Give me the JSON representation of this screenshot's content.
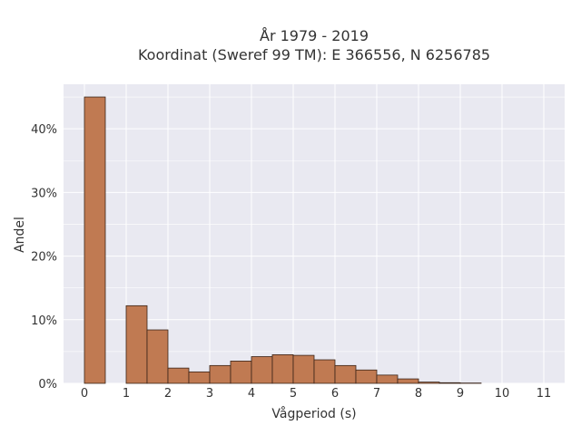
{
  "chart_data": {
    "type": "bar",
    "title_line1": "År 1979 - 2019",
    "title_line2": "Koordinat (Sweref 99 TM): E 366556, N 6256785",
    "xlabel": "Vågperiod (s)",
    "ylabel": "Andel",
    "xlim": [
      -0.5,
      11.5
    ],
    "ylim": [
      0,
      0.47
    ],
    "x_ticks": [
      0,
      1,
      2,
      3,
      4,
      5,
      6,
      7,
      8,
      9,
      10,
      11
    ],
    "y_ticks": [
      {
        "value": 0.0,
        "label": "0%"
      },
      {
        "value": 0.1,
        "label": "10%"
      },
      {
        "value": 0.2,
        "label": "20%"
      },
      {
        "value": 0.3,
        "label": "30%"
      },
      {
        "value": 0.4,
        "label": "40%"
      }
    ],
    "bin_width": 0.5,
    "bins": [
      {
        "start": 0.0,
        "value": 0.45
      },
      {
        "start": 1.0,
        "value": 0.122
      },
      {
        "start": 1.5,
        "value": 0.084
      },
      {
        "start": 2.0,
        "value": 0.024
      },
      {
        "start": 2.5,
        "value": 0.018
      },
      {
        "start": 3.0,
        "value": 0.028
      },
      {
        "start": 3.5,
        "value": 0.035
      },
      {
        "start": 4.0,
        "value": 0.042
      },
      {
        "start": 4.5,
        "value": 0.045
      },
      {
        "start": 5.0,
        "value": 0.044
      },
      {
        "start": 5.5,
        "value": 0.037
      },
      {
        "start": 6.0,
        "value": 0.028
      },
      {
        "start": 6.5,
        "value": 0.021
      },
      {
        "start": 7.0,
        "value": 0.013
      },
      {
        "start": 7.5,
        "value": 0.007
      },
      {
        "start": 8.0,
        "value": 0.002
      },
      {
        "start": 8.5,
        "value": 0.001
      },
      {
        "start": 9.0,
        "value": 0.0005
      }
    ],
    "bar_color": "#c07a52",
    "bar_edge_color": "#3a2418",
    "plot_bg": "#e9e9f1",
    "grid": true,
    "grid_color": "#ffffff"
  }
}
